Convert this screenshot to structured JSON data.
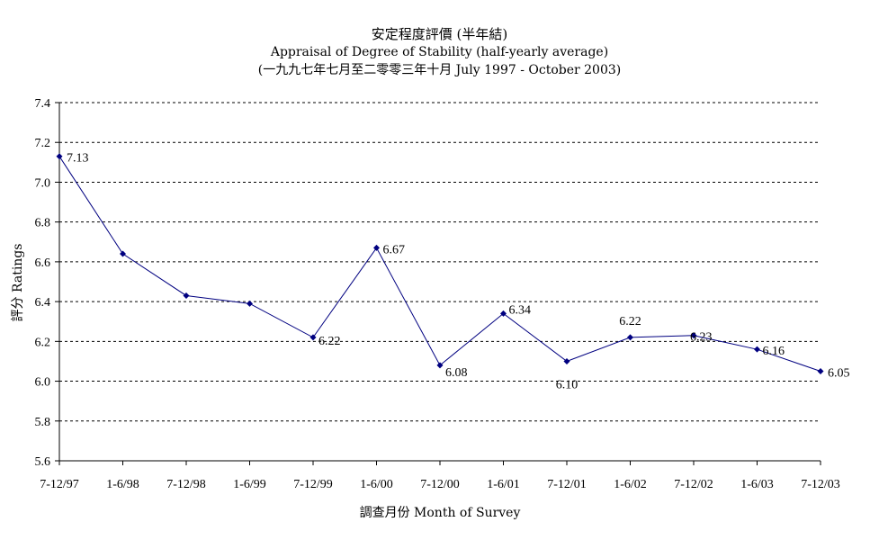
{
  "chart_data": {
    "type": "line",
    "title": "安定程度評價 (半年結)",
    "subtitle": "Appraisal of Degree of Stability (half-yearly average)",
    "subtitle2": "(一九九七年七月至二零零三年十月 July 1997 - October 2003)",
    "xlabel": "調查月份 Month of Survey",
    "ylabel": "評分 Ratings",
    "ylim": [
      5.6,
      7.4
    ],
    "ytick_step": 0.2,
    "yticks": [
      "7.4",
      "7.2",
      "7.0",
      "6.8",
      "6.6",
      "6.4",
      "6.2",
      "6.0",
      "5.8",
      "5.6"
    ],
    "grid": "horizontal dashed",
    "categories": [
      "7-12/97",
      "1-6/98",
      "7-12/98",
      "1-6/99",
      "7-12/99",
      "1-6/00",
      "7-12/00",
      "1-6/01",
      "7-12/01",
      "1-6/02",
      "7-12/02",
      "1-6/03",
      "7-12/03"
    ],
    "series": [
      {
        "values": [
          7.13,
          6.64,
          6.43,
          6.39,
          6.22,
          6.67,
          6.08,
          6.34,
          6.1,
          6.22,
          6.23,
          6.16,
          6.05
        ],
        "labels": [
          "7.13",
          "",
          "",
          "",
          "6.22",
          "6.67",
          "6.08",
          "6.34",
          "6.10",
          "6.22",
          "6.23",
          "6.16",
          "6.05"
        ],
        "color": "#000080"
      }
    ]
  }
}
